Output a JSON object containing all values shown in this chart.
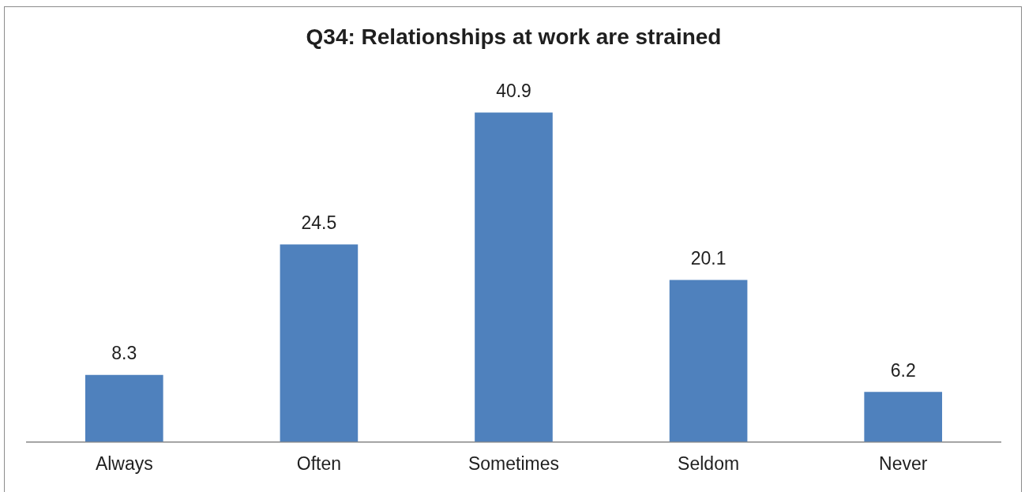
{
  "chart_data": {
    "type": "bar",
    "title": "Q34: Relationships at work are strained",
    "categories": [
      "Always",
      "Often",
      "Sometimes",
      "Seldom",
      "Never"
    ],
    "values": [
      8.3,
      24.5,
      40.9,
      20.1,
      6.2
    ],
    "color": "#4f81bd",
    "data_labels": true,
    "tick_labels": "x"
  }
}
